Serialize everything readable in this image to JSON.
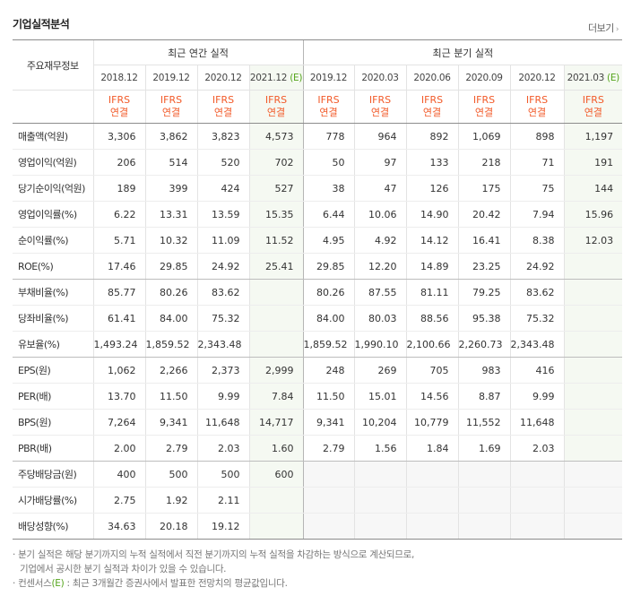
{
  "header": {
    "title": "기업실적분석",
    "more_label": "더보기"
  },
  "table": {
    "row_header_label": "주요재무정보",
    "annual_label": "최근 연간 실적",
    "quarter_label": "최근 분기 실적",
    "annual_periods": [
      "2018.12",
      "2019.12",
      "2020.12",
      "2021.12"
    ],
    "annual_estimate_mark": "(E)",
    "quarter_periods": [
      "2019.12",
      "2020.03",
      "2020.06",
      "2020.09",
      "2020.12",
      "2021.03"
    ],
    "quarter_estimate_mark": "(E)",
    "ifrs_line1": "IFRS",
    "ifrs_line2": "연결",
    "rows": [
      {
        "label": "매출액(억원)",
        "annual": [
          "3,306",
          "3,862",
          "3,823",
          "4,573"
        ],
        "quarter": [
          "778",
          "964",
          "892",
          "1,069",
          "898",
          "1,197"
        ]
      },
      {
        "label": "영업이익(억원)",
        "annual": [
          "206",
          "514",
          "520",
          "702"
        ],
        "quarter": [
          "50",
          "97",
          "133",
          "218",
          "71",
          "191"
        ]
      },
      {
        "label": "당기순이익(억원)",
        "annual": [
          "189",
          "399",
          "424",
          "527"
        ],
        "quarter": [
          "38",
          "47",
          "126",
          "175",
          "75",
          "144"
        ]
      },
      {
        "label": "영업이익률(%)",
        "annual": [
          "6.22",
          "13.31",
          "13.59",
          "15.35"
        ],
        "quarter": [
          "6.44",
          "10.06",
          "14.90",
          "20.42",
          "7.94",
          "15.96"
        ]
      },
      {
        "label": "순이익률(%)",
        "annual": [
          "5.71",
          "10.32",
          "11.09",
          "11.52"
        ],
        "quarter": [
          "4.95",
          "4.92",
          "14.12",
          "16.41",
          "8.38",
          "12.03"
        ]
      },
      {
        "label": "ROE(%)",
        "annual": [
          "17.46",
          "29.85",
          "24.92",
          "25.41"
        ],
        "quarter": [
          "29.85",
          "12.20",
          "14.89",
          "23.25",
          "24.92",
          ""
        ]
      },
      {
        "label": "부채비율(%)",
        "annual": [
          "85.77",
          "80.26",
          "83.62",
          ""
        ],
        "quarter": [
          "80.26",
          "87.55",
          "81.11",
          "79.25",
          "83.62",
          ""
        ]
      },
      {
        "label": "당좌비율(%)",
        "annual": [
          "61.41",
          "84.00",
          "75.32",
          ""
        ],
        "quarter": [
          "84.00",
          "80.03",
          "88.56",
          "95.38",
          "75.32",
          ""
        ]
      },
      {
        "label": "유보율(%)",
        "annual": [
          "1,493.24",
          "1,859.52",
          "2,343.48",
          ""
        ],
        "quarter": [
          "1,859.52",
          "1,990.10",
          "2,100.66",
          "2,260.73",
          "2,343.48",
          ""
        ]
      },
      {
        "label": "EPS(원)",
        "annual": [
          "1,062",
          "2,266",
          "2,373",
          "2,999"
        ],
        "quarter": [
          "248",
          "269",
          "705",
          "983",
          "416",
          ""
        ]
      },
      {
        "label": "PER(배)",
        "annual": [
          "13.70",
          "11.50",
          "9.99",
          "7.84"
        ],
        "quarter": [
          "11.50",
          "15.01",
          "14.56",
          "8.87",
          "9.99",
          ""
        ]
      },
      {
        "label": "BPS(원)",
        "annual": [
          "7,264",
          "9,341",
          "11,648",
          "14,717"
        ],
        "quarter": [
          "9,341",
          "10,204",
          "10,779",
          "11,552",
          "11,648",
          ""
        ]
      },
      {
        "label": "PBR(배)",
        "annual": [
          "2.00",
          "2.79",
          "2.03",
          "1.60"
        ],
        "quarter": [
          "2.79",
          "1.56",
          "1.84",
          "1.69",
          "2.03",
          ""
        ]
      },
      {
        "label": "주당배당금(원)",
        "annual": [
          "400",
          "500",
          "500",
          "600"
        ],
        "quarter": [
          "",
          "",
          "",
          "",
          "",
          ""
        ]
      },
      {
        "label": "시가배당률(%)",
        "annual": [
          "2.75",
          "1.92",
          "2.11",
          ""
        ],
        "quarter": [
          "",
          "",
          "",
          "",
          "",
          ""
        ]
      },
      {
        "label": "배당성향(%)",
        "annual": [
          "34.63",
          "20.18",
          "19.12",
          ""
        ],
        "quarter": [
          "",
          "",
          "",
          "",
          "",
          ""
        ]
      }
    ]
  },
  "notes": {
    "line1": "· 분기 실적은 해당 분기까지의 누적 실적에서 직전 분기까지의 누적 실적을 차감하는 방식으로 계산되므로,",
    "line2": "기업에서 공시한 분기 실적과 차이가 있을 수 있습니다.",
    "line3_prefix": "· 컨센서스",
    "line3_mark": "(E)",
    "line3_suffix": " : 최근 3개월간 증권사에서 발표한 전망치의 평균값입니다."
  }
}
